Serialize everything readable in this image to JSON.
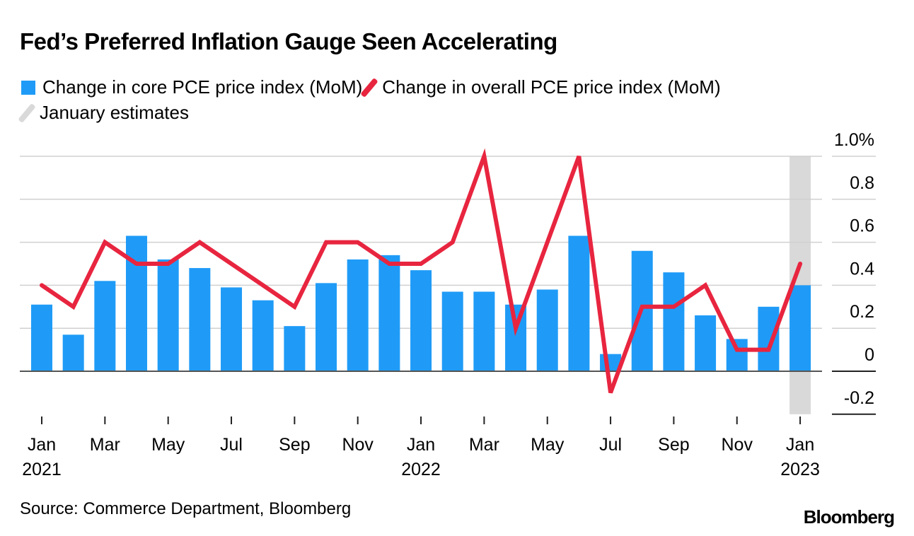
{
  "chart_data": {
    "type": "bar+line",
    "title": "Fed’s Preferred Inflation Gauge Seen Accelerating",
    "source": "Source: Commerce Department, Bloomberg",
    "logo": "Bloomberg",
    "legend": [
      "Change in core PCE price index (MoM)",
      "Change in overall PCE price index (MoM)",
      "January estimates"
    ],
    "legend_placement": "top-left",
    "colors": {
      "bar": "#1f9bf7",
      "line": "#e8253f",
      "shade": "#d9d9d9"
    },
    "x": [
      "2021-01",
      "2021-02",
      "2021-03",
      "2021-04",
      "2021-05",
      "2021-06",
      "2021-07",
      "2021-08",
      "2021-09",
      "2021-10",
      "2021-11",
      "2021-12",
      "2022-01",
      "2022-02",
      "2022-03",
      "2022-04",
      "2022-05",
      "2022-06",
      "2022-07",
      "2022-08",
      "2022-09",
      "2022-10",
      "2022-11",
      "2022-12",
      "2023-01"
    ],
    "x_tick_labels": [
      {
        "month": "Jan",
        "year": "2021",
        "index": 0
      },
      {
        "month": "Mar",
        "index": 2
      },
      {
        "month": "May",
        "index": 4
      },
      {
        "month": "Jul",
        "index": 6
      },
      {
        "month": "Sep",
        "index": 8
      },
      {
        "month": "Nov",
        "index": 10
      },
      {
        "month": "Jan",
        "year": "2022",
        "index": 12
      },
      {
        "month": "Mar",
        "index": 14
      },
      {
        "month": "May",
        "index": 16
      },
      {
        "month": "Jul",
        "index": 18
      },
      {
        "month": "Sep",
        "index": 20
      },
      {
        "month": "Nov",
        "index": 22
      },
      {
        "month": "Jan",
        "year": "2023",
        "index": 24
      }
    ],
    "series": [
      {
        "name": "Change in core PCE price index (MoM)",
        "type": "bar",
        "values": [
          0.31,
          0.17,
          0.42,
          0.63,
          0.52,
          0.48,
          0.39,
          0.33,
          0.21,
          0.41,
          0.52,
          0.54,
          0.47,
          0.37,
          0.37,
          0.31,
          0.38,
          0.63,
          0.08,
          0.56,
          0.46,
          0.26,
          0.15,
          0.3,
          0.4
        ]
      },
      {
        "name": "Change in overall PCE price index (MoM)",
        "type": "line",
        "values": [
          0.4,
          0.3,
          0.6,
          0.5,
          0.5,
          0.6,
          0.5,
          0.4,
          0.3,
          0.6,
          0.6,
          0.5,
          0.5,
          0.6,
          1.0,
          0.2,
          0.6,
          1.0,
          -0.1,
          0.3,
          0.3,
          0.4,
          0.1,
          0.1,
          0.5
        ]
      }
    ],
    "highlight": {
      "label": "January estimates",
      "index": 24
    },
    "y_ticks": [
      1.0,
      0.8,
      0.6,
      0.4,
      0.2,
      0,
      -0.2
    ],
    "y_tick_labels": [
      "1.0%",
      "0.8",
      "0.6",
      "0.4",
      "0.2",
      "0",
      "-0.2"
    ],
    "ylim": [
      -0.2,
      1.0
    ],
    "grid": true,
    "y_axis_side": "right"
  }
}
